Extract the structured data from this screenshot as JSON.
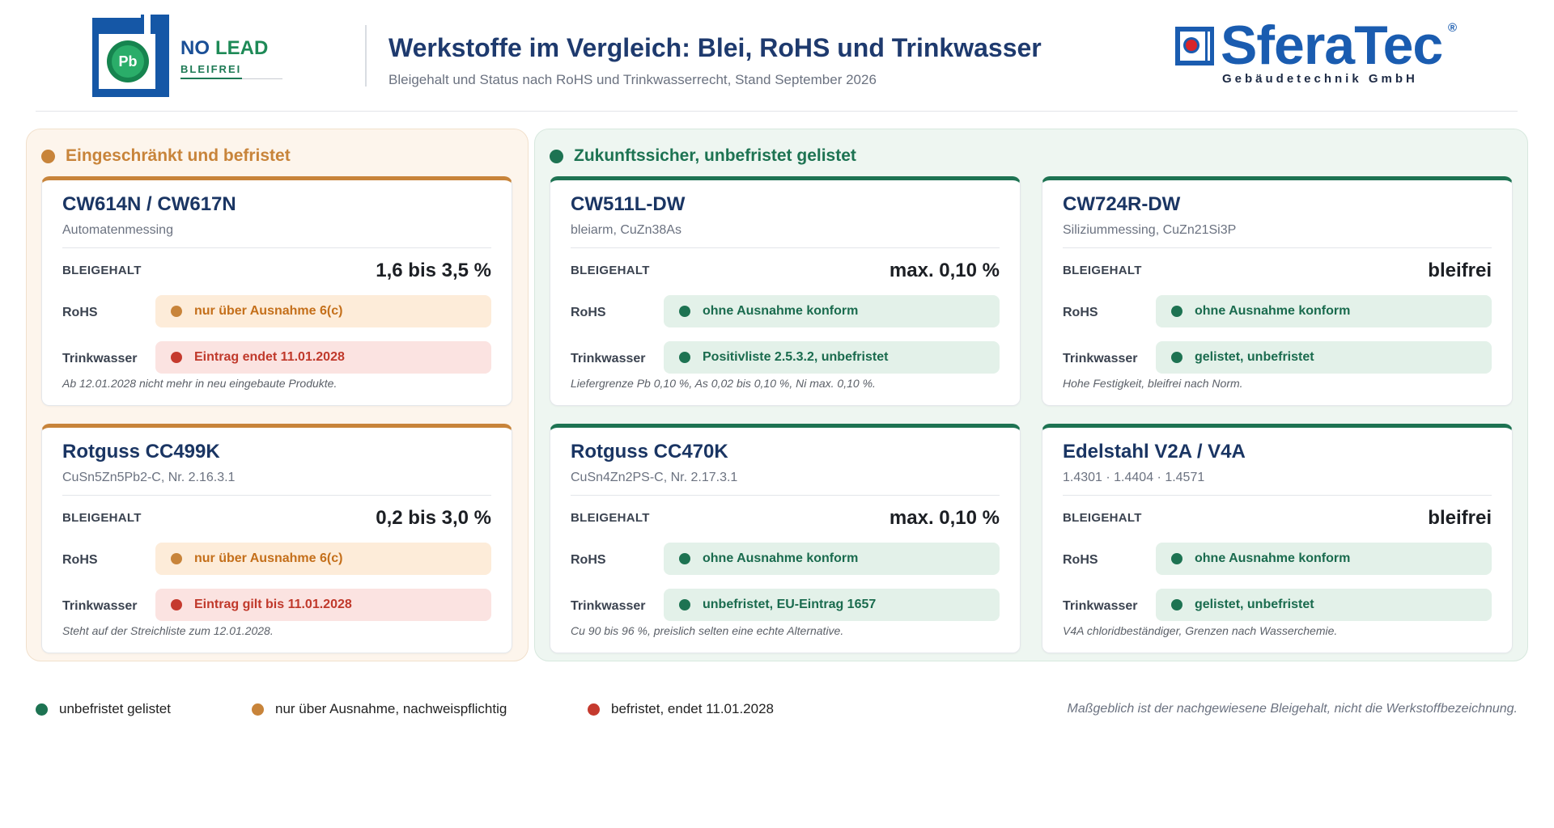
{
  "colors": {
    "navy": "#1e3a6e",
    "brand": "#1a5cb0",
    "restricted": "#c8843a",
    "expiring": "#c53a2e",
    "unlimited": "#1d7352"
  },
  "header": {
    "logo_left": {
      "symbol": "Pb",
      "word1": "NO",
      "word2": "LEAD",
      "tagline": "BLEIFREI"
    },
    "title": "Werkstoffe im Vergleich: Blei, RoHS und Trinkwasser",
    "subtitle": "Bleigehalt und Status nach RoHS und Trinkwasserrecht, Stand September 2026",
    "logo_right": {
      "name": "SferaTec",
      "registered": "®",
      "tagline": "Gebäudetechnik GmbH"
    }
  },
  "labels": {
    "lead": "BLEIGEHALT",
    "rohs": "RoHS",
    "water": "Trinkwasser"
  },
  "panels": [
    {
      "title": "Eingeschränkt und befristet",
      "status": "exception",
      "cards": [
        {
          "name": "CW614N / CW617N",
          "subtitle": "Automatenmessing",
          "lead_value": "1,6 bis 3,5 %",
          "rohs": {
            "text": "nur über Ausnahme 6(c)",
            "status": "exception"
          },
          "water": {
            "text": "Eintrag endet 11.01.2028",
            "status": "expiring"
          },
          "note": "Ab 12.01.2028 nicht mehr in neu eingebaute Produkte."
        },
        {
          "name": "Rotguss CC499K",
          "subtitle": "CuSn5Zn5Pb2-C, Nr. 2.16.3.1",
          "lead_value": "0,2 bis 3,0 %",
          "rohs": {
            "text": "nur über Ausnahme 6(c)",
            "status": "exception"
          },
          "water": {
            "text": "Eintrag gilt bis 11.01.2028",
            "status": "expiring"
          },
          "note": "Steht auf der Streichliste zum 12.01.2028."
        }
      ]
    },
    {
      "title": "Zukunftssicher, unbefristet gelistet",
      "status": "unlimited",
      "cards": [
        {
          "name": "CW511L-DW",
          "subtitle": "bleiarm, CuZn38As",
          "lead_value": "max. 0,10 %",
          "rohs": {
            "text": "ohne Ausnahme konform",
            "status": "unlimited"
          },
          "water": {
            "text": "Positivliste 2.5.3.2, unbefristet",
            "status": "unlimited"
          },
          "note": "Liefergrenze Pb 0,10 %, As 0,02 bis 0,10 %, Ni max. 0,10 %."
        },
        {
          "name": "CW724R-DW",
          "subtitle": "Siliziummessing, CuZn21Si3P",
          "lead_value": "bleifrei",
          "rohs": {
            "text": "ohne Ausnahme konform",
            "status": "unlimited"
          },
          "water": {
            "text": "gelistet, unbefristet",
            "status": "unlimited"
          },
          "note": "Hohe Festigkeit, bleifrei nach Norm."
        },
        {
          "name": "Rotguss CC470K",
          "subtitle": "CuSn4Zn2PS-C, Nr. 2.17.3.1",
          "lead_value": "max. 0,10 %",
          "rohs": {
            "text": "ohne Ausnahme konform",
            "status": "unlimited"
          },
          "water": {
            "text": "unbefristet, EU-Eintrag 1657",
            "status": "unlimited"
          },
          "note": "Cu 90 bis 96 %, preislich selten eine echte Alternative."
        },
        {
          "name": "Edelstahl V2A / V4A",
          "subtitle": "1.4301 · 1.4404 · 1.4571",
          "lead_value": "bleifrei",
          "rohs": {
            "text": "ohne Ausnahme konform",
            "status": "unlimited"
          },
          "water": {
            "text": "gelistet, unbefristet",
            "status": "unlimited"
          },
          "note": "V4A chloridbeständiger, Grenzen nach Wasserchemie."
        }
      ]
    }
  ],
  "legend": {
    "items": [
      {
        "label": "unbefristet gelistet",
        "status": "unlimited"
      },
      {
        "label": "nur über Ausnahme, nachweispflichtig",
        "status": "exception"
      },
      {
        "label": "befristet, endet 11.01.2028",
        "status": "expiring"
      }
    ],
    "note": "Maßgeblich ist der nachgewiesene Bleigehalt, nicht die Werkstoffbezeichnung."
  }
}
